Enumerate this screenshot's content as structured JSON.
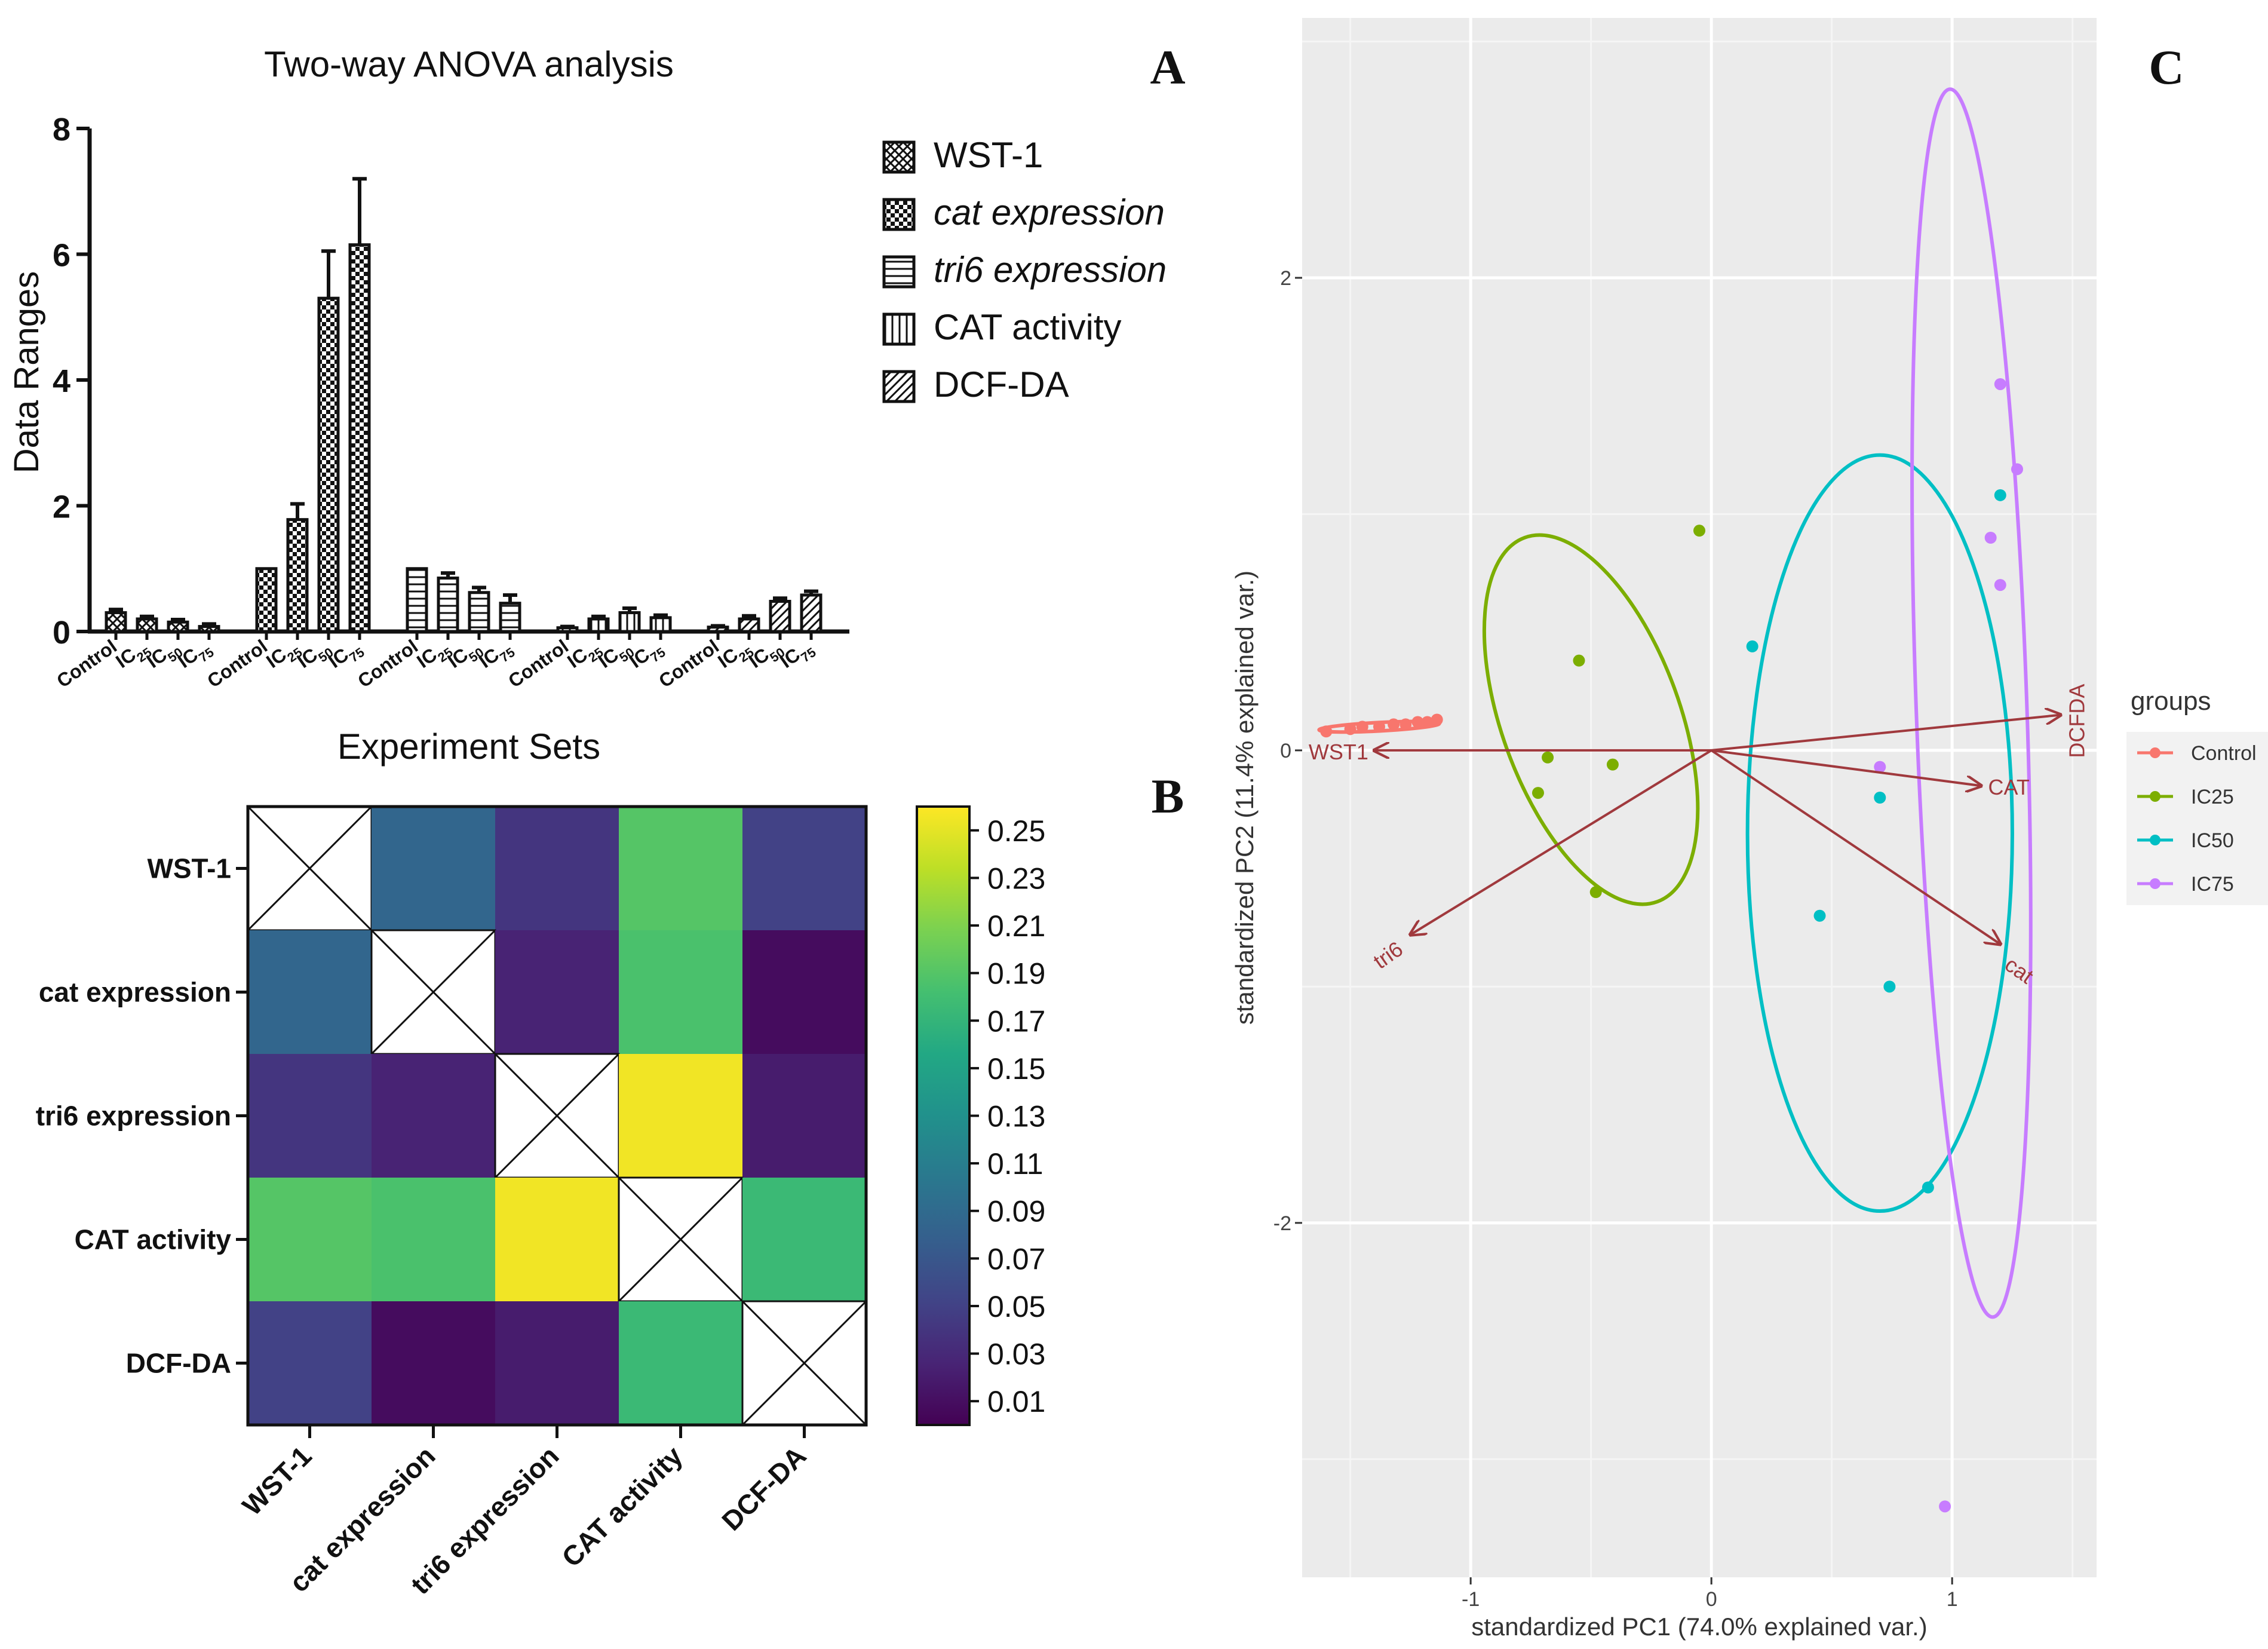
{
  "panel_labels": {
    "a": "A",
    "b": "B",
    "c": "C"
  },
  "chart_data": [
    {
      "id": "A",
      "type": "bar",
      "title": "Two-way ANOVA analysis",
      "xlabel": "Experiment Sets",
      "ylabel": "Data Ranges",
      "ylim": [
        0,
        8
      ],
      "yticks": [
        "0",
        "2",
        "4",
        "6",
        "8"
      ],
      "categories": [
        {
          "base": "Control",
          "sub": ""
        },
        {
          "base": "IC",
          "sub": "25"
        },
        {
          "base": "IC",
          "sub": "50"
        },
        {
          "base": "IC",
          "sub": "75"
        }
      ],
      "series": [
        {
          "name": "WST-1",
          "italic": false,
          "pattern": "crosshatch",
          "values": [
            0.3,
            0.2,
            0.15,
            0.08
          ],
          "errors": [
            0.05,
            0.04,
            0.04,
            0.04
          ]
        },
        {
          "name": "cat expression",
          "italic": true,
          "pattern": "checker",
          "values": [
            1.0,
            1.78,
            5.3,
            6.15
          ],
          "errors": [
            0.0,
            0.25,
            0.75,
            1.05
          ]
        },
        {
          "name": "tri6 expression",
          "italic": true,
          "pattern": "horizontal",
          "values": [
            1.0,
            0.85,
            0.62,
            0.45
          ],
          "errors": [
            0.0,
            0.08,
            0.08,
            0.13
          ]
        },
        {
          "name": "CAT activity",
          "italic": false,
          "pattern": "vertical",
          "values": [
            0.06,
            0.2,
            0.3,
            0.22
          ],
          "errors": [
            0.02,
            0.04,
            0.07,
            0.04
          ]
        },
        {
          "name": "DCF-DA",
          "italic": false,
          "pattern": "diagonal",
          "values": [
            0.07,
            0.2,
            0.48,
            0.58
          ],
          "errors": [
            0.02,
            0.05,
            0.05,
            0.06
          ]
        }
      ],
      "legend_position": "right"
    },
    {
      "id": "B",
      "type": "heatmap",
      "rows": [
        "WST-1",
        "cat expression",
        "tri6 expression",
        "CAT activity",
        "DCF-DA"
      ],
      "cols": [
        "WST-1",
        "cat expression",
        "tri6 expression",
        "CAT activity",
        "DCF-DA"
      ],
      "values": [
        [
          null,
          0.085,
          0.04,
          0.19,
          0.05
        ],
        [
          0.085,
          null,
          0.025,
          0.185,
          0.008
        ],
        [
          0.04,
          0.025,
          null,
          0.255,
          0.02
        ],
        [
          0.19,
          0.185,
          0.255,
          null,
          0.175
        ],
        [
          0.05,
          0.008,
          0.02,
          0.175,
          null
        ]
      ],
      "colorbar": {
        "min": 0.0,
        "max": 0.26,
        "ticks": [
          "0.25",
          "0.23",
          "0.21",
          "0.19",
          "0.17",
          "0.15",
          "0.13",
          "0.11",
          "0.09",
          "0.07",
          "0.05",
          "0.03",
          "0.01"
        ]
      }
    },
    {
      "id": "C",
      "type": "scatter",
      "subtype": "pca-biplot",
      "xlabel": "standardized PC1 (74.0% explained var.)",
      "ylabel": "standardized PC2 (11.4% explained var.)",
      "xlim": [
        -1.7,
        1.6
      ],
      "ylim": [
        -3.5,
        3.1
      ],
      "xticks": [
        -1,
        0,
        1
      ],
      "yticks": [
        2,
        0,
        -2
      ],
      "xtick_labels": [
        "-1",
        "0",
        "1"
      ],
      "ytick_labels": [
        "2",
        "0",
        "-2"
      ],
      "legend_title": "groups",
      "legend_position": "right",
      "groups": [
        {
          "name": "Control",
          "color": "#f8766d",
          "points": [
            [
              -1.6,
              0.08
            ],
            [
              -1.5,
              0.09
            ],
            [
              -1.45,
              0.1
            ],
            [
              -1.38,
              0.1
            ],
            [
              -1.32,
              0.11
            ],
            [
              -1.27,
              0.11
            ],
            [
              -1.22,
              0.12
            ],
            [
              -1.18,
              0.12
            ],
            [
              -1.14,
              0.13
            ]
          ],
          "ellipse": {
            "cx": -1.38,
            "cy": 0.1,
            "rx": 0.25,
            "ry": 0.018,
            "angle": -3
          }
        },
        {
          "name": "IC25",
          "color": "#7cae00",
          "points": [
            [
              -0.05,
              0.93
            ],
            [
              -0.55,
              0.38
            ],
            [
              -0.68,
              -0.03
            ],
            [
              -0.72,
              -0.18
            ],
            [
              -0.41,
              -0.06
            ],
            [
              -0.48,
              -0.6
            ]
          ],
          "ellipse": {
            "cx": -0.5,
            "cy": 0.13,
            "rx": 0.37,
            "ry": 0.82,
            "angle": -20
          }
        },
        {
          "name": "IC50",
          "color": "#00bfc4",
          "points": [
            [
              0.17,
              0.44
            ],
            [
              0.7,
              -0.2
            ],
            [
              0.45,
              -0.7
            ],
            [
              0.74,
              -1.0
            ],
            [
              0.9,
              -1.85
            ],
            [
              1.2,
              1.08
            ]
          ],
          "ellipse": {
            "cx": 0.7,
            "cy": -0.35,
            "rx": 0.55,
            "ry": 1.6,
            "angle": 0
          }
        },
        {
          "name": "IC75",
          "color": "#c77cff",
          "points": [
            [
              0.7,
              -0.07
            ],
            [
              1.2,
              1.55
            ],
            [
              1.27,
              1.19
            ],
            [
              1.16,
              0.9
            ],
            [
              1.2,
              0.7
            ],
            [
              0.97,
              -3.2
            ]
          ],
          "ellipse": {
            "cx": 1.08,
            "cy": 0.2,
            "rx": 0.23,
            "ry": 2.6,
            "angle": -2
          }
        }
      ],
      "vectors": [
        {
          "label": "WST1",
          "x": -1.4,
          "y": 0.0
        },
        {
          "label": "tri6",
          "x": -1.25,
          "y": -0.78
        },
        {
          "label": "CAT",
          "x": 1.12,
          "y": -0.15
        },
        {
          "label": "cat",
          "x": 1.2,
          "y": -0.82
        },
        {
          "label": "DCFDA",
          "x": 1.45,
          "y": 0.15
        }
      ],
      "vector_color": "#a0393d"
    }
  ]
}
